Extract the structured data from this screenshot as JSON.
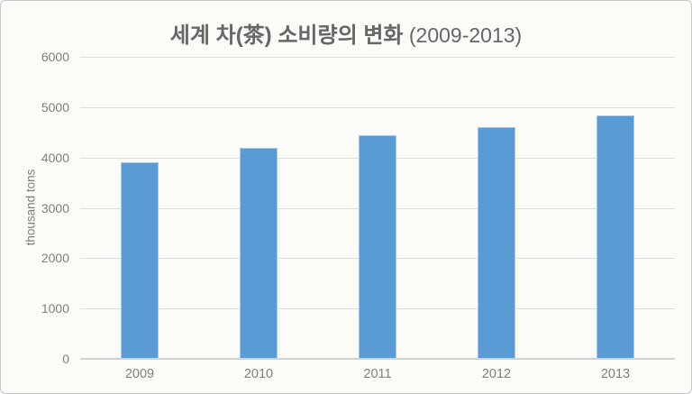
{
  "chart": {
    "title_main": "세계 차(茶) 소비량의 변화",
    "title_suffix": " (2009-2013)",
    "ylabel": "thousand tons"
  },
  "chart_data": {
    "type": "bar",
    "title": "세계 차(茶) 소비량의 변화 (2009-2013)",
    "categories": [
      "2009",
      "2010",
      "2011",
      "2012",
      "2013"
    ],
    "values": [
      3900,
      4190,
      4440,
      4610,
      4840
    ],
    "xlabel": "",
    "ylabel": "thousand tons",
    "ylim": [
      0,
      6000
    ],
    "ytick_step": 1000,
    "grid": true,
    "legend": false,
    "colors": {
      "bar_fill": "#5b9bd5",
      "bar_border": "#a6c6e5",
      "gridline": "#dedede",
      "axis_line": "#d2d2d2",
      "title": "#666666",
      "tick_label": "#7f7f7f",
      "ylabel": "#7d7d7d",
      "background": "#fbfcf8"
    }
  }
}
